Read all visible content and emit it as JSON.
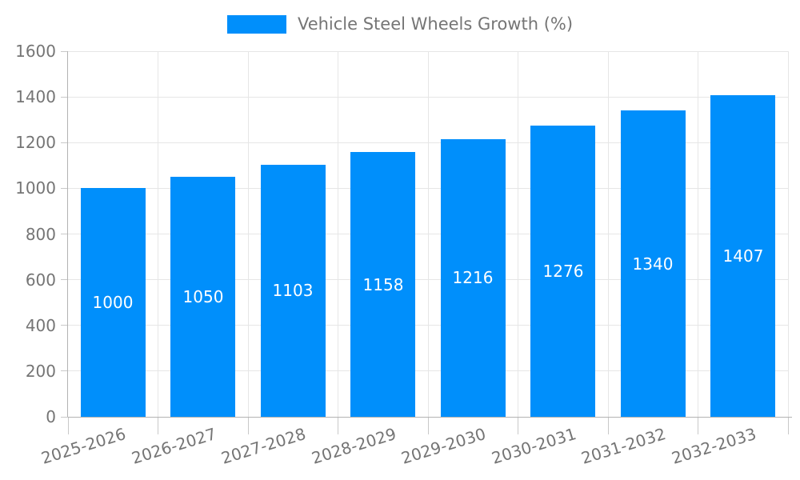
{
  "chart_data": {
    "type": "bar",
    "title": "Vehicle Steel Wheels Growth (%)",
    "categories": [
      "2025-2026",
      "2026-2027",
      "2027-2028",
      "2028-2029",
      "2029-2030",
      "2030-2031",
      "2031-2032",
      "2032-2033"
    ],
    "values": [
      1000,
      1050,
      1103,
      1158,
      1216,
      1276,
      1340,
      1407
    ],
    "series": [
      {
        "name": "Vehicle Steel Wheels Growth (%)",
        "values": [
          1000,
          1050,
          1103,
          1158,
          1216,
          1276,
          1340,
          1407
        ]
      }
    ],
    "value_labels": [
      "1000",
      "1050",
      "1103",
      "1158",
      "1216",
      "1276",
      "1340",
      "1407"
    ],
    "xlabel": "",
    "ylabel": "",
    "ylim": [
      0,
      1600
    ],
    "yticks": [
      0,
      200,
      400,
      600,
      800,
      1000,
      1200,
      1400,
      1600
    ],
    "grid": true,
    "legend_position": "top-center",
    "x_label_rotation_deg": -17,
    "colors": {
      "bar": "#008ffb",
      "value_label": "#ffffff",
      "grid": "#e6e6e6",
      "axis": "#b3b3b3",
      "tick": "#c9c9c9",
      "tick_label": "#757575",
      "background": "#ffffff"
    }
  }
}
